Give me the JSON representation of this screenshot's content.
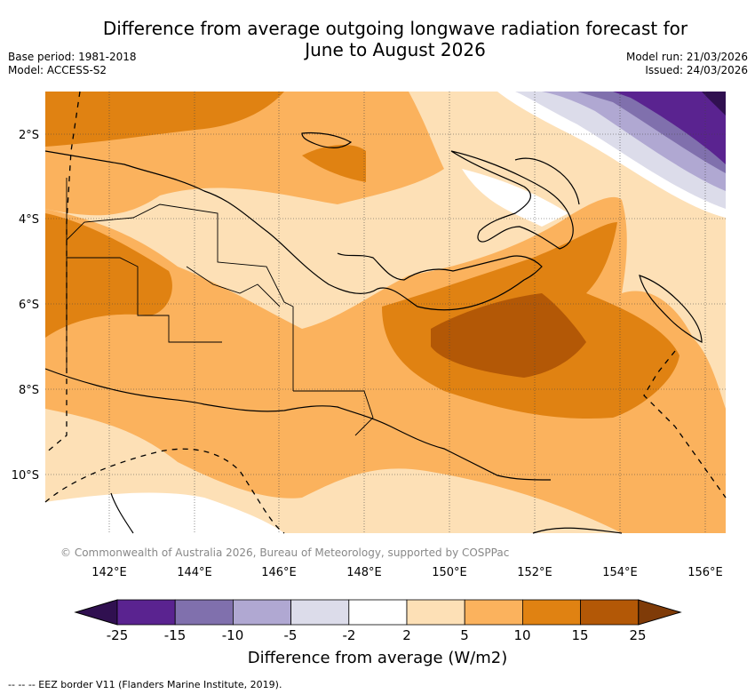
{
  "header": {
    "title_line1": "Difference from average outgoing longwave radiation forecast for",
    "title_line2": "June to August 2026",
    "base_period": "Base period: 1981-2018",
    "model": "Model: ACCESS-S2",
    "model_run": "Model run: 21/03/2026",
    "issued": "Issued: 24/03/2026"
  },
  "map": {
    "lat_labels": [
      "2°S",
      "4°S",
      "6°S",
      "8°S",
      "10°S"
    ],
    "lon_labels": [
      "142°E",
      "144°E",
      "146°E",
      "148°E",
      "150°E",
      "152°E",
      "154°E",
      "156°E"
    ],
    "copyright": "© Commonwealth of Australia 2026, Bureau of Meteorology, supported by COSPPac"
  },
  "colorbar": {
    "label": "Difference from average (W/m2)",
    "ticks": [
      "-25",
      "-15",
      "-10",
      "-5",
      "-2",
      "2",
      "5",
      "10",
      "15",
      "25"
    ],
    "colors": [
      "#301050",
      "#5a2390",
      "#8070ad",
      "#b0a8d2",
      "#dcdcea",
      "#ffffff",
      "#fde0b6",
      "#fbb25d",
      "#e08212",
      "#b35806",
      "#7f3b08"
    ]
  },
  "footer": {
    "legend": "--  --  -- EEZ border V11 (Flanders Marine Institute, 2019)."
  }
}
